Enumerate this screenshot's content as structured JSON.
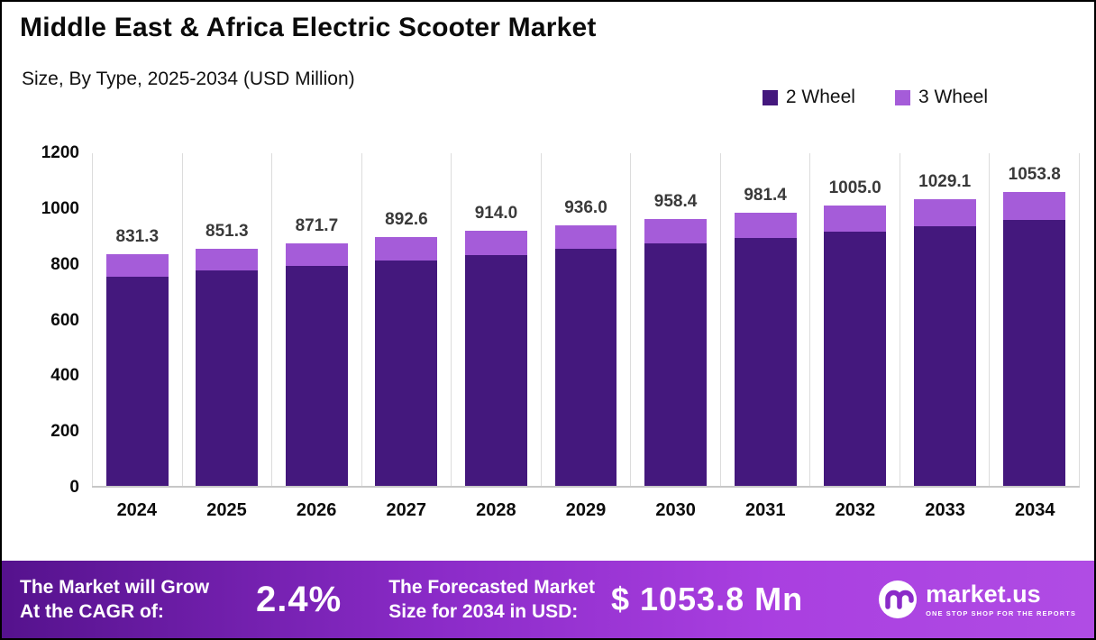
{
  "header": {
    "title": "Middle East & Africa Electric Scooter Market",
    "subtitle": "Size, By Type, 2025-2034 (USD Million)"
  },
  "legend": [
    {
      "label": "2 Wheel",
      "color": "#44187d"
    },
    {
      "label": "3 Wheel",
      "color": "#a55cd9"
    }
  ],
  "chart_data": {
    "type": "bar",
    "stacked": true,
    "title": "Middle East & Africa Electric Scooter Market",
    "subtitle": "Size, By Type, 2025-2034 (USD Million)",
    "xlabel": "",
    "ylabel": "",
    "ylim": [
      0,
      1200
    ],
    "y_ticks": [
      0,
      200,
      400,
      600,
      800,
      1000,
      1200
    ],
    "grid": "vertical-light",
    "legend_position": "top-right",
    "categories": [
      "2024",
      "2025",
      "2026",
      "2027",
      "2028",
      "2029",
      "2030",
      "2031",
      "2032",
      "2033",
      "2034"
    ],
    "series": [
      {
        "name": "2 Wheel",
        "color": "#44187d",
        "values": [
          750.0,
          771.5,
          790.5,
          810.0,
          829.5,
          849.5,
          869.5,
          890.5,
          911.0,
          933.0,
          955.5
        ]
      },
      {
        "name": "3 Wheel",
        "color": "#a55cd9",
        "values": [
          81.3,
          79.8,
          81.2,
          82.6,
          84.5,
          86.5,
          88.9,
          90.9,
          94.0,
          96.1,
          98.3
        ]
      }
    ],
    "totals": [
      831.3,
      851.3,
      871.7,
      892.6,
      914.0,
      936.0,
      958.4,
      981.4,
      1005.0,
      1029.1,
      1053.8
    ],
    "total_labels": [
      "831.3",
      "851.3",
      "871.7",
      "892.6",
      "914.0",
      "936.0",
      "958.4",
      "981.4",
      "1005.0",
      "1029.1",
      "1053.8"
    ]
  },
  "footer": {
    "cagr_label_line1": "The Market will Grow",
    "cagr_label_line2": "At the CAGR of:",
    "cagr_value": "2.4%",
    "forecast_label_line1": "The Forecasted Market",
    "forecast_label_line2": "Size for 2034 in USD:",
    "forecast_value": "$ 1053.8 Mn",
    "brand_name": "market.us",
    "brand_tagline": "ONE STOP SHOP FOR THE REPORTS"
  },
  "colors": {
    "bar_2_wheel": "#44187d",
    "bar_3_wheel": "#a55cd9",
    "footer_gradient_start": "#55128d",
    "footer_gradient_end": "#b04ce4",
    "label_text": "#3a3a3a"
  }
}
